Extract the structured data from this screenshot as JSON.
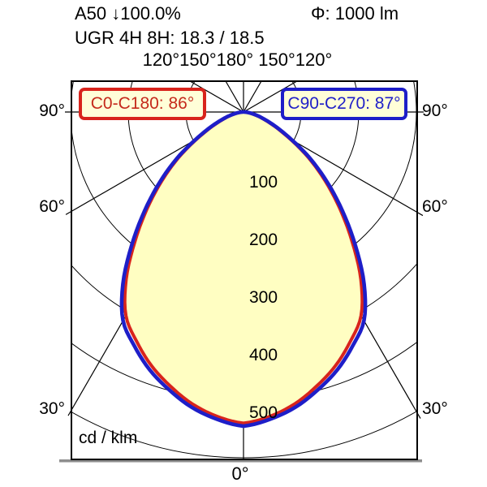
{
  "header": {
    "product": "A50 ↓100.0%",
    "flux": "Φ: 1000 lm",
    "ugr": "UGR 4H 8H: 18.3 / 18.5"
  },
  "legend": {
    "c0": {
      "label": "C0-C180: 86°",
      "color": "#d8241c"
    },
    "c90": {
      "label": "C90-C270: 87°",
      "color": "#1e1ec8"
    }
  },
  "axis_labels": {
    "top_row": "120°150°180° 150°120°",
    "left_90": "90°",
    "left_60": "60°",
    "left_30": "30°",
    "right_90": "90°",
    "right_60": "60°",
    "right_30": "30°",
    "bottom": "0°",
    "unit": "cd / klm"
  },
  "chart_data": {
    "type": "polar",
    "subtype": "luminous-intensity-distribution",
    "unit": "cd/klm",
    "flux_lm": 1000,
    "ugr_4h_8h": [
      18.3,
      18.5
    ],
    "angles_deg": [
      0,
      5,
      10,
      15,
      20,
      25,
      30,
      35,
      40,
      45,
      50,
      55,
      60,
      65,
      70,
      75,
      80,
      85,
      90
    ],
    "series": [
      {
        "name": "C0-C180",
        "beam_angle_deg": 86,
        "color": "#d8241c",
        "values": [
          540,
          530,
          514,
          492,
          468,
          439,
          408,
          355,
          293,
          236,
          184,
          137,
          93,
          61,
          39,
          24,
          12,
          5,
          0
        ]
      },
      {
        "name": "C90-C270",
        "beam_angle_deg": 87,
        "color": "#1e1ec8",
        "values": [
          545,
          535,
          520,
          499,
          476,
          448,
          418,
          365,
          302,
          243,
          190,
          142,
          97,
          65,
          42,
          26,
          14,
          6,
          1
        ]
      }
    ],
    "fill_color": "#fffec2",
    "radial_ticks": [
      100,
      200,
      300,
      400,
      500
    ],
    "radial_max": 600,
    "angle_grid_step_deg": 30,
    "angle_labels": [
      "0°",
      "30°",
      "60°",
      "90°",
      "120°",
      "150°",
      "180°"
    ]
  }
}
